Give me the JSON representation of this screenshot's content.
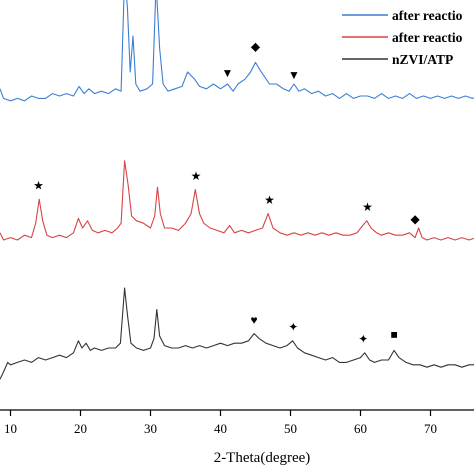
{
  "chart_data": {
    "type": "line",
    "xlabel": "2-Theta(degree)",
    "ylabel": "",
    "xlim": [
      8.5,
      79
    ],
    "x_ticks": [
      "10",
      "20",
      "30",
      "40",
      "50",
      "60",
      "70"
    ],
    "grid": false,
    "legend_position": "top-right",
    "series": [
      {
        "name": "after reactio",
        "color": "#3b7fd4",
        "points": [
          [
            8.5,
            0.88
          ],
          [
            9,
            0.84
          ],
          [
            10,
            0.83
          ],
          [
            11,
            0.84
          ],
          [
            12,
            0.83
          ],
          [
            13,
            0.85
          ],
          [
            14,
            0.84
          ],
          [
            15,
            0.84
          ],
          [
            16,
            0.86
          ],
          [
            17,
            0.85
          ],
          [
            18,
            0.86
          ],
          [
            19,
            0.85
          ],
          [
            19.8,
            0.89
          ],
          [
            20.5,
            0.86
          ],
          [
            21.2,
            0.88
          ],
          [
            22,
            0.86
          ],
          [
            23,
            0.87
          ],
          [
            24,
            0.86
          ],
          [
            25,
            0.88
          ],
          [
            25.8,
            0.87
          ],
          [
            26.3,
            1.35
          ],
          [
            26.7,
            1.22
          ],
          [
            27.1,
            0.95
          ],
          [
            27.5,
            1.1
          ],
          [
            27.9,
            0.9
          ],
          [
            28.5,
            0.87
          ],
          [
            29.5,
            0.88
          ],
          [
            30.3,
            0.9
          ],
          [
            30.8,
            1.32
          ],
          [
            31.3,
            1.05
          ],
          [
            31.8,
            0.9
          ],
          [
            32.5,
            0.87
          ],
          [
            33.5,
            0.88
          ],
          [
            34.5,
            0.89
          ],
          [
            35.3,
            0.95
          ],
          [
            36.3,
            0.92
          ],
          [
            37,
            0.89
          ],
          [
            38,
            0.88
          ],
          [
            39,
            0.9
          ],
          [
            40,
            0.88
          ],
          [
            41,
            0.9
          ],
          [
            41.8,
            0.87
          ],
          [
            42.5,
            0.9
          ],
          [
            43.5,
            0.92
          ],
          [
            44.3,
            0.95
          ],
          [
            45,
            0.99
          ],
          [
            45.6,
            0.96
          ],
          [
            46.3,
            0.93
          ],
          [
            47,
            0.9
          ],
          [
            48,
            0.9
          ],
          [
            49,
            0.88
          ],
          [
            49.8,
            0.87
          ],
          [
            50.5,
            0.9
          ],
          [
            51.2,
            0.87
          ],
          [
            52,
            0.88
          ],
          [
            53,
            0.86
          ],
          [
            54,
            0.87
          ],
          [
            55,
            0.85
          ],
          [
            56,
            0.86
          ],
          [
            57,
            0.84
          ],
          [
            58,
            0.86
          ],
          [
            59,
            0.84
          ],
          [
            60,
            0.85
          ],
          [
            61,
            0.85
          ],
          [
            62,
            0.84
          ],
          [
            63,
            0.86
          ],
          [
            64,
            0.84
          ],
          [
            65,
            0.85
          ],
          [
            66,
            0.84
          ],
          [
            67,
            0.86
          ],
          [
            68,
            0.84
          ],
          [
            69,
            0.85
          ],
          [
            70,
            0.84
          ],
          [
            71,
            0.85
          ],
          [
            72,
            0.84
          ],
          [
            73,
            0.85
          ],
          [
            74,
            0.84
          ],
          [
            75,
            0.85
          ],
          [
            76,
            0.84
          ],
          [
            77,
            0.85
          ],
          [
            78,
            0.84
          ],
          [
            79,
            0.84
          ]
        ]
      },
      {
        "name": "after reactio",
        "color": "#d94343",
        "points": [
          [
            8.5,
            0.28
          ],
          [
            9,
            0.25
          ],
          [
            10,
            0.26
          ],
          [
            11,
            0.25
          ],
          [
            12,
            0.27
          ],
          [
            13,
            0.26
          ],
          [
            13.6,
            0.32
          ],
          [
            14.1,
            0.42
          ],
          [
            14.6,
            0.33
          ],
          [
            15.2,
            0.27
          ],
          [
            16,
            0.26
          ],
          [
            17,
            0.27
          ],
          [
            18,
            0.26
          ],
          [
            19,
            0.28
          ],
          [
            19.7,
            0.34
          ],
          [
            20.3,
            0.3
          ],
          [
            21,
            0.33
          ],
          [
            21.7,
            0.29
          ],
          [
            22.5,
            0.28
          ],
          [
            23.5,
            0.29
          ],
          [
            24.5,
            0.28
          ],
          [
            25.3,
            0.3
          ],
          [
            25.8,
            0.32
          ],
          [
            26.3,
            0.58
          ],
          [
            26.8,
            0.48
          ],
          [
            27.3,
            0.35
          ],
          [
            28,
            0.33
          ],
          [
            29,
            0.32
          ],
          [
            30,
            0.3
          ],
          [
            30.6,
            0.35
          ],
          [
            31,
            0.47
          ],
          [
            31.4,
            0.36
          ],
          [
            32,
            0.3
          ],
          [
            33,
            0.3
          ],
          [
            34,
            0.29
          ],
          [
            35,
            0.32
          ],
          [
            35.8,
            0.36
          ],
          [
            36.4,
            0.46
          ],
          [
            37,
            0.36
          ],
          [
            37.6,
            0.32
          ],
          [
            38.5,
            0.3
          ],
          [
            39.5,
            0.29
          ],
          [
            40.5,
            0.28
          ],
          [
            41.3,
            0.31
          ],
          [
            42,
            0.28
          ],
          [
            43,
            0.29
          ],
          [
            44,
            0.28
          ],
          [
            45,
            0.29
          ],
          [
            46,
            0.3
          ],
          [
            46.8,
            0.36
          ],
          [
            47.5,
            0.3
          ],
          [
            48.5,
            0.28
          ],
          [
            49.5,
            0.27
          ],
          [
            50.5,
            0.28
          ],
          [
            51.5,
            0.27
          ],
          [
            52.5,
            0.28
          ],
          [
            53.5,
            0.27
          ],
          [
            54.5,
            0.28
          ],
          [
            55.5,
            0.27
          ],
          [
            56.5,
            0.28
          ],
          [
            57.5,
            0.27
          ],
          [
            58.5,
            0.27
          ],
          [
            59.5,
            0.28
          ],
          [
            60.3,
            0.31
          ],
          [
            60.9,
            0.33
          ],
          [
            61.5,
            0.3
          ],
          [
            62.3,
            0.28
          ],
          [
            63,
            0.27
          ],
          [
            64,
            0.28
          ],
          [
            65,
            0.27
          ],
          [
            66,
            0.27
          ],
          [
            67,
            0.28
          ],
          [
            67.8,
            0.26
          ],
          [
            68.3,
            0.3
          ],
          [
            68.8,
            0.26
          ],
          [
            69.5,
            0.25
          ],
          [
            70.5,
            0.26
          ],
          [
            71.5,
            0.25
          ],
          [
            72.5,
            0.26
          ],
          [
            73.5,
            0.25
          ],
          [
            74.5,
            0.26
          ],
          [
            75.5,
            0.25
          ],
          [
            76.5,
            0.26
          ],
          [
            77.5,
            0.25
          ],
          [
            78.5,
            0.26
          ],
          [
            79,
            0.25
          ]
        ]
      },
      {
        "name": "nZVI/ATP",
        "color": "#333333",
        "points": [
          [
            8.5,
            -0.33
          ],
          [
            9,
            -0.3
          ],
          [
            9.6,
            -0.26
          ],
          [
            10,
            -0.27
          ],
          [
            11,
            -0.26
          ],
          [
            12,
            -0.25
          ],
          [
            13,
            -0.26
          ],
          [
            14,
            -0.24
          ],
          [
            15,
            -0.25
          ],
          [
            16,
            -0.24
          ],
          [
            17,
            -0.23
          ],
          [
            18,
            -0.24
          ],
          [
            19,
            -0.22
          ],
          [
            19.7,
            -0.17
          ],
          [
            20.2,
            -0.2
          ],
          [
            20.8,
            -0.18
          ],
          [
            21.4,
            -0.21
          ],
          [
            22,
            -0.2
          ],
          [
            23,
            -0.21
          ],
          [
            24,
            -0.2
          ],
          [
            25,
            -0.2
          ],
          [
            25.7,
            -0.18
          ],
          [
            26.3,
            0.05
          ],
          [
            26.7,
            -0.06
          ],
          [
            27.2,
            -0.18
          ],
          [
            28,
            -0.2
          ],
          [
            29,
            -0.21
          ],
          [
            30,
            -0.2
          ],
          [
            30.5,
            -0.16
          ],
          [
            30.9,
            -0.04
          ],
          [
            31.3,
            -0.15
          ],
          [
            32,
            -0.19
          ],
          [
            33,
            -0.2
          ],
          [
            34,
            -0.2
          ],
          [
            35,
            -0.19
          ],
          [
            36,
            -0.2
          ],
          [
            37,
            -0.19
          ],
          [
            38,
            -0.2
          ],
          [
            39,
            -0.19
          ],
          [
            40,
            -0.18
          ],
          [
            41,
            -0.19
          ],
          [
            42,
            -0.18
          ],
          [
            43,
            -0.18
          ],
          [
            44,
            -0.17
          ],
          [
            44.8,
            -0.14
          ],
          [
            45.5,
            -0.16
          ],
          [
            46.5,
            -0.18
          ],
          [
            47.5,
            -0.19
          ],
          [
            48.5,
            -0.2
          ],
          [
            49.5,
            -0.19
          ],
          [
            50.3,
            -0.17
          ],
          [
            51,
            -0.2
          ],
          [
            52,
            -0.22
          ],
          [
            53,
            -0.23
          ],
          [
            54,
            -0.24
          ],
          [
            55,
            -0.25
          ],
          [
            56,
            -0.24
          ],
          [
            57,
            -0.26
          ],
          [
            58,
            -0.26
          ],
          [
            59,
            -0.25
          ],
          [
            60,
            -0.24
          ],
          [
            60.6,
            -0.22
          ],
          [
            61.3,
            -0.25
          ],
          [
            62,
            -0.26
          ],
          [
            63,
            -0.25
          ],
          [
            64,
            -0.25
          ],
          [
            64.8,
            -0.21
          ],
          [
            65.5,
            -0.24
          ],
          [
            66.5,
            -0.26
          ],
          [
            67.5,
            -0.27
          ],
          [
            68.5,
            -0.27
          ],
          [
            69.5,
            -0.28
          ],
          [
            70.5,
            -0.27
          ],
          [
            71.5,
            -0.28
          ],
          [
            72.5,
            -0.27
          ],
          [
            73.5,
            -0.27
          ],
          [
            74.5,
            -0.28
          ],
          [
            75.5,
            -0.27
          ],
          [
            76.5,
            -0.27
          ],
          [
            77.5,
            -0.28
          ],
          [
            78.5,
            -0.27
          ],
          [
            79,
            -0.27
          ]
        ]
      }
    ],
    "annotations": [
      {
        "shape": "triangle-down",
        "glyph": "▼",
        "x": 41,
        "y": 0.93
      },
      {
        "shape": "diamond",
        "glyph": "◆",
        "x": 45,
        "y": 1.04
      },
      {
        "shape": "triangle-down",
        "glyph": "▼",
        "x": 50.5,
        "y": 0.92
      },
      {
        "shape": "star",
        "glyph": "★",
        "x": 14,
        "y": 0.46
      },
      {
        "shape": "star",
        "glyph": "★",
        "x": 36.5,
        "y": 0.5
      },
      {
        "shape": "star",
        "glyph": "★",
        "x": 47,
        "y": 0.4
      },
      {
        "shape": "star",
        "glyph": "★",
        "x": 61,
        "y": 0.37
      },
      {
        "shape": "diamond",
        "glyph": "◆",
        "x": 67.8,
        "y": 0.32
      },
      {
        "shape": "heart",
        "glyph": "♥",
        "x": 44.8,
        "y": -0.1
      },
      {
        "shape": "cross",
        "glyph": "✦",
        "x": 50.4,
        "y": -0.13
      },
      {
        "shape": "cross",
        "glyph": "✦",
        "x": 60.4,
        "y": -0.18
      },
      {
        "shape": "square",
        "glyph": "■",
        "x": 64.8,
        "y": -0.16
      }
    ]
  }
}
